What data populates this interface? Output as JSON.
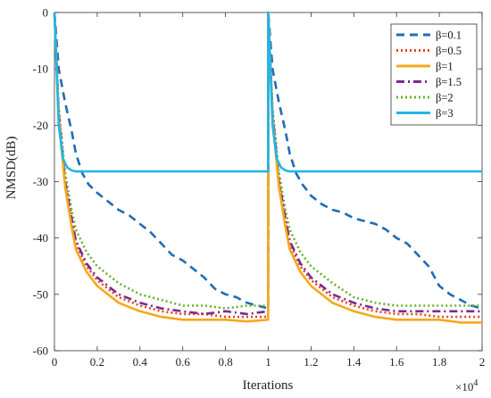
{
  "chart_data": {
    "type": "line",
    "title": "",
    "xlabel": "Iterations",
    "ylabel": "NMSD(dB)",
    "x_exponent_label": "×10",
    "x_exponent_power": "4",
    "xlim": [
      0,
      2
    ],
    "ylim": [
      -60,
      0
    ],
    "xticks": [
      "0",
      "0.2",
      "0.4",
      "0.6",
      "0.8",
      "1",
      "1.2",
      "1.4",
      "1.6",
      "1.8",
      "2"
    ],
    "yticks": [
      "0",
      "-10",
      "-20",
      "-30",
      "-40",
      "-50",
      "-60"
    ],
    "grid": false,
    "legend_position": "top-right",
    "series": [
      {
        "name": "β=0.1",
        "color": "#1f6cb4",
        "dash": "dashed",
        "x": [
          0,
          0.02,
          0.05,
          0.08,
          0.1,
          0.13,
          0.16,
          0.2,
          0.25,
          0.3,
          0.35,
          0.4,
          0.45,
          0.5,
          0.55,
          0.6,
          0.65,
          0.7,
          0.75,
          0.8,
          0.85,
          0.9,
          0.95,
          0.999,
          1.0,
          1.02,
          1.05,
          1.08,
          1.1,
          1.13,
          1.16,
          1.2,
          1.25,
          1.3,
          1.35,
          1.4,
          1.45,
          1.5,
          1.55,
          1.6,
          1.65,
          1.7,
          1.75,
          1.8,
          1.85,
          1.9,
          1.95,
          2.0
        ],
        "y": [
          0,
          -10,
          -16,
          -21,
          -25,
          -28.5,
          -30.5,
          -32,
          -33.5,
          -35,
          -36,
          -37.5,
          -39,
          -41,
          -43,
          -44,
          -45.5,
          -47,
          -49,
          -50,
          -50.5,
          -51.5,
          -52,
          -52.5,
          0,
          -10,
          -16,
          -21,
          -25,
          -28.5,
          -30.5,
          -32.5,
          -34,
          -35,
          -35.5,
          -36.5,
          -37,
          -37.5,
          -38.5,
          -40,
          -41,
          -43,
          -45,
          -48.5,
          -50,
          -51,
          -52,
          -52.5
        ]
      },
      {
        "name": "β=0.5",
        "color": "#e8431e",
        "dash": "dotted",
        "x": [
          0,
          0.02,
          0.05,
          0.08,
          0.1,
          0.15,
          0.2,
          0.3,
          0.4,
          0.5,
          0.6,
          0.7,
          0.8,
          0.9,
          0.999,
          1.0,
          1.02,
          1.05,
          1.08,
          1.1,
          1.15,
          1.2,
          1.3,
          1.4,
          1.5,
          1.6,
          1.7,
          1.8,
          1.9,
          2.0
        ],
        "y": [
          0,
          -18,
          -30,
          -37,
          -41,
          -45,
          -47.5,
          -50.5,
          -52,
          -53,
          -53.5,
          -53.5,
          -54,
          -54,
          -54,
          0,
          -18,
          -30,
          -37,
          -41,
          -45,
          -47.5,
          -50.5,
          -52,
          -53,
          -53.5,
          -53.5,
          -54,
          -54,
          -54
        ]
      },
      {
        "name": "β=1",
        "color": "#f5a81c",
        "dash": "solid",
        "x": [
          0,
          0.02,
          0.05,
          0.08,
          0.1,
          0.15,
          0.2,
          0.3,
          0.4,
          0.5,
          0.6,
          0.7,
          0.8,
          0.9,
          0.999,
          1.0,
          1.02,
          1.05,
          1.08,
          1.1,
          1.15,
          1.2,
          1.3,
          1.4,
          1.5,
          1.6,
          1.7,
          1.8,
          1.9,
          2.0
        ],
        "y": [
          0,
          -19,
          -31,
          -38,
          -42,
          -46,
          -48.5,
          -51.5,
          -53,
          -54,
          -54.5,
          -54.5,
          -54.5,
          -54.8,
          -54.5,
          0,
          -19,
          -31,
          -38,
          -42,
          -46,
          -48.5,
          -51.5,
          -53,
          -54,
          -54.5,
          -54.5,
          -54.5,
          -55,
          -55
        ]
      },
      {
        "name": "β=1.5",
        "color": "#7b2a8e",
        "dash": "dashdot",
        "x": [
          0,
          0.02,
          0.05,
          0.08,
          0.1,
          0.15,
          0.2,
          0.3,
          0.4,
          0.5,
          0.6,
          0.7,
          0.8,
          0.9,
          0.999,
          1.0,
          1.02,
          1.05,
          1.08,
          1.1,
          1.15,
          1.2,
          1.3,
          1.4,
          1.5,
          1.6,
          1.7,
          1.8,
          1.9,
          2.0
        ],
        "y": [
          0,
          -18,
          -30,
          -36.5,
          -40.5,
          -44.5,
          -47,
          -50,
          -51.5,
          -52.5,
          -53,
          -53.5,
          -53,
          -53.5,
          -53,
          0,
          -18,
          -30,
          -36.5,
          -40.5,
          -44.5,
          -47,
          -50,
          -51.5,
          -52.5,
          -53,
          -53,
          -53,
          -53,
          -53
        ]
      },
      {
        "name": "β=2",
        "color": "#6bb02e",
        "dash": "dotted",
        "x": [
          0,
          0.02,
          0.05,
          0.08,
          0.1,
          0.15,
          0.2,
          0.3,
          0.4,
          0.5,
          0.6,
          0.7,
          0.8,
          0.9,
          0.999,
          1.0,
          1.02,
          1.05,
          1.08,
          1.1,
          1.15,
          1.2,
          1.3,
          1.4,
          1.5,
          1.6,
          1.7,
          1.8,
          1.9,
          2.0
        ],
        "y": [
          0,
          -17,
          -28.5,
          -35,
          -38.5,
          -42.5,
          -45,
          -48,
          -50,
          -51,
          -52,
          -52,
          -52.5,
          -52,
          -52,
          0,
          -17,
          -28.5,
          -35,
          -38.5,
          -42.5,
          -45,
          -48,
          -50.5,
          -51.5,
          -52,
          -52,
          -52,
          -52,
          -52
        ]
      },
      {
        "name": "β=3",
        "color": "#22b5e6",
        "dash": "solid",
        "x": [
          0,
          0.02,
          0.04,
          0.06,
          0.08,
          0.1,
          0.15,
          0.5,
          0.999,
          1.0,
          1.02,
          1.04,
          1.06,
          1.08,
          1.1,
          1.15,
          1.5,
          2.0
        ],
        "y": [
          0,
          -20,
          -26,
          -27.5,
          -28,
          -28.2,
          -28.2,
          -28.2,
          -28.2,
          0,
          -20,
          -26,
          -27.5,
          -28,
          -28.2,
          -28.2,
          -28.2,
          -28.2
        ]
      }
    ]
  }
}
